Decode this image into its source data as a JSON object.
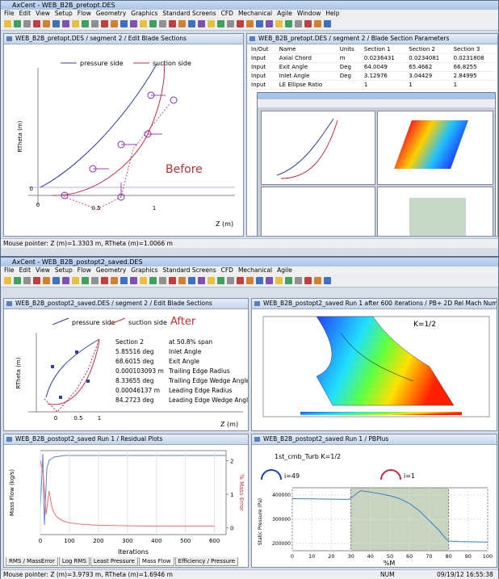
{
  "top_window": {
    "title": "AxCent - WEB_B2B_pretopt.DES",
    "menu": [
      "File",
      "Edit",
      "View",
      "Setup",
      "Flow",
      "Geometry",
      "Graphics",
      "Standard Screens",
      "CFD",
      "Mechanical",
      "Agile",
      "Window",
      "Help"
    ],
    "blade_sections_panel": {
      "title": "WEB_B2B_pretopt.DES / segment 2 / Edit Blade Sections",
      "legend": [
        "pressure side",
        "suction side"
      ],
      "label": "Before",
      "y_axis": "RTheta (m)",
      "x_axis": "Z (m)",
      "x_ticks": [
        "0",
        "0.5",
        "1"
      ],
      "y_ticks": [
        "0"
      ]
    },
    "parameters_panel": {
      "title": "WEB_B2B_pretopt.DES / segment 2 / Blade Section Parameters",
      "columns": [
        "In/Out",
        "Name",
        "Units",
        "Section 1",
        "Section 2",
        "Section 3"
      ],
      "rows": [
        [
          "Input",
          "Axial Chord",
          "m",
          "0.0236431",
          "0.0234081",
          "0.0231808"
        ],
        [
          "Input",
          "Exit Angle",
          "Deg",
          "64.0049",
          "65.4662",
          "66.8255"
        ],
        [
          "Input",
          "Inlet Angle",
          "Deg",
          "3.12976",
          "3.04429",
          "2.84995"
        ],
        [
          "Input",
          "LE Ellipse Ratio",
          "",
          "1",
          "1",
          "1"
        ]
      ]
    },
    "status": "Mouse pointer: Z (m)=1.3303 m, RTheta (m)=1.0066 m"
  },
  "bottom_window": {
    "title": "AxCent - WEB_B2B_postopt2_saved.DES",
    "menu": [
      "File",
      "Edit",
      "View",
      "Setup",
      "Flow",
      "Geometry",
      "Graphics",
      "Standard Screens",
      "CFD",
      "Mechanical",
      "Agile"
    ],
    "blade_sections_panel": {
      "title": "WEB_B2B_postopt2_saved.DES / segment 2 / Edit Blade Sections",
      "legend": [
        "pressure side",
        "suction side"
      ],
      "label": "After",
      "y_axis": "RTheta (m)",
      "x_axis": "Z (m)",
      "x_ticks": [
        "0",
        "0.5",
        "1"
      ],
      "section_info": [
        [
          "Section 2",
          "at 50.8% span"
        ],
        [
          "5.85516 deg",
          "Inlet Angle"
        ],
        [
          "68.6015 deg",
          "Exit Angle"
        ],
        [
          "0.000103093 m",
          "Trailing Edge Radius"
        ],
        [
          "8.33655 deg",
          "Trailing Edge Wedge Angle"
        ],
        [
          "0.00046137 m",
          "Leading Edge Radius"
        ],
        [
          "84.2723 deg",
          "Leading Edge Wedge Angle"
        ]
      ]
    },
    "mach_panel": {
      "title": "WEB_B2B_postopt2_saved Run 1 after 600 iterations / PB+ 2D Rel Mach Num...",
      "label": "K=1/2"
    },
    "residual_panel": {
      "title": "WEB_B2B_postopt2_saved Run 1 / Residual Plots",
      "y_axis": "Mass Flow (kg/s)",
      "y2_axis": "% Mass Error",
      "x_axis": "Iterations",
      "xlim": [
        0,
        640
      ],
      "xticks": [
        0,
        100,
        200,
        300,
        400,
        500,
        600
      ],
      "y2lim": [
        -0.2,
        2.3
      ],
      "y2ticks": [
        0,
        1,
        2
      ],
      "series": [
        {
          "name": "% Mass Error",
          "color": "#f07070",
          "axis": "y2",
          "x": [
            0,
            10,
            20,
            30,
            40,
            50,
            60,
            80,
            100,
            150,
            200,
            300,
            400,
            500,
            600
          ],
          "values": [
            2.0,
            1.6,
            0.4,
            1.1,
            0.6,
            0.4,
            0.3,
            0.2,
            0.15,
            0.1,
            0.08,
            0.06,
            0.05,
            0.05,
            0.05
          ]
        }
      ],
      "tabs": [
        "RMS / MassError",
        "Log RMS",
        "Least Pressure",
        "Mass Flow",
        "Efficiency / Pressure"
      ]
    },
    "pbplus_panel": {
      "title": "WEB_B2B_postopt2_saved Run 1 / PBPlus",
      "label": "1st_cmb_Turb  K=1/2",
      "legend": [
        "i=49",
        "i=1"
      ],
      "x_axis": "%M",
      "y_axis": "Static Pressure (Pa)",
      "xlim": [
        0,
        100
      ],
      "xticks": [
        0,
        10,
        20,
        30,
        40,
        50,
        60,
        70,
        80,
        90,
        100
      ],
      "ylim": [
        170000,
        430000
      ],
      "yticks": [
        200000,
        300000,
        400000
      ],
      "shaded_range": [
        30,
        80
      ],
      "series": [
        {
          "color": "#3a7fc0",
          "x": [
            0,
            10,
            20,
            29,
            35,
            40,
            45,
            50,
            55,
            60,
            65,
            70,
            75,
            78,
            80,
            85,
            90,
            100
          ],
          "values": [
            385000,
            384000,
            383000,
            382000,
            418000,
            412000,
            405000,
            397000,
            385000,
            365000,
            335000,
            295000,
            255000,
            225000,
            210000,
            208000,
            207000,
            206000
          ]
        }
      ]
    },
    "status": "Mouse pointer: Z (m)=3.9793 m, RTheta (m)=1.6946 m",
    "status_num": "NUM",
    "status_time": "09/19/12 16:55:38"
  }
}
